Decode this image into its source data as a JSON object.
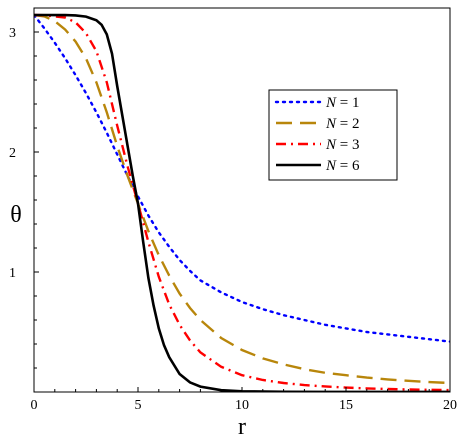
{
  "chart_data": {
    "type": "line",
    "xlabel": "r",
    "ylabel": "θ",
    "xlim": [
      0,
      20
    ],
    "ylim": [
      0,
      3.2
    ],
    "xticks": [
      0,
      5,
      10,
      15,
      20
    ],
    "xtick_labels": [
      "0",
      "5",
      "10",
      "15",
      "20"
    ],
    "yticks": [
      1,
      2,
      3
    ],
    "ytick_labels": [
      "1",
      "2",
      "3"
    ],
    "grid": false,
    "legend_position": "top-right",
    "series": [
      {
        "name": "N = 1",
        "legend_var": "N",
        "legend_rest": " = 1",
        "color": "#0000ff",
        "dash": "dotted",
        "x": [
          0,
          0.5,
          1,
          1.5,
          2,
          2.5,
          3,
          3.5,
          4,
          4.5,
          5,
          5.5,
          6,
          6.5,
          7,
          7.5,
          8,
          9,
          10,
          11,
          12,
          13,
          14,
          15,
          16,
          17,
          18,
          19,
          20
        ],
        "y": [
          3.1416,
          3.03,
          2.91,
          2.78,
          2.64,
          2.49,
          2.33,
          2.16,
          1.98,
          1.8,
          1.63,
          1.47,
          1.33,
          1.21,
          1.1,
          1.01,
          0.93,
          0.83,
          0.75,
          0.69,
          0.64,
          0.6,
          0.56,
          0.53,
          0.5,
          0.48,
          0.46,
          0.44,
          0.42
        ]
      },
      {
        "name": "N = 2",
        "legend_var": "N",
        "legend_rest": " = 2",
        "color": "#b8860b",
        "dash": "dashed",
        "x": [
          0,
          0.5,
          1,
          1.5,
          2,
          2.5,
          3,
          3.5,
          4,
          4.5,
          5,
          5.5,
          6,
          6.5,
          7,
          7.5,
          8,
          9,
          10,
          11,
          12,
          13,
          14,
          15,
          16,
          17,
          18,
          19,
          20
        ],
        "y": [
          3.1416,
          3.13,
          3.09,
          3.02,
          2.92,
          2.78,
          2.58,
          2.33,
          2.05,
          1.8,
          1.57,
          1.34,
          1.14,
          0.97,
          0.82,
          0.7,
          0.6,
          0.45,
          0.35,
          0.28,
          0.23,
          0.19,
          0.16,
          0.14,
          0.12,
          0.105,
          0.093,
          0.083,
          0.075
        ]
      },
      {
        "name": "N = 3",
        "legend_var": "N",
        "legend_rest": " = 3",
        "color": "#ff0000",
        "dash": "dashdot",
        "x": [
          0,
          0.5,
          1,
          1.5,
          2,
          2.5,
          3,
          3.5,
          4,
          4.5,
          5,
          5.5,
          6,
          6.5,
          7,
          7.5,
          8,
          9,
          10,
          11,
          12,
          13,
          14,
          15,
          16,
          17,
          18,
          19,
          20
        ],
        "y": [
          3.1416,
          3.14,
          3.13,
          3.12,
          3.08,
          2.99,
          2.84,
          2.58,
          2.22,
          1.88,
          1.57,
          1.25,
          0.96,
          0.73,
          0.56,
          0.43,
          0.33,
          0.21,
          0.14,
          0.1,
          0.075,
          0.058,
          0.046,
          0.037,
          0.03,
          0.025,
          0.021,
          0.018,
          0.016
        ]
      },
      {
        "name": "N = 6",
        "legend_var": "N",
        "legend_rest": " = 6",
        "color": "#000000",
        "dash": "solid",
        "x": [
          0,
          0.5,
          1,
          1.5,
          2,
          2.5,
          3,
          3.25,
          3.5,
          3.75,
          4,
          4.25,
          4.5,
          4.75,
          5,
          5.25,
          5.5,
          5.75,
          6,
          6.25,
          6.5,
          7,
          7.5,
          8,
          9,
          10,
          12,
          14,
          16,
          18,
          20
        ],
        "y": [
          3.1416,
          3.1416,
          3.1415,
          3.141,
          3.138,
          3.128,
          3.098,
          3.06,
          2.98,
          2.82,
          2.55,
          2.3,
          2.05,
          1.8,
          1.57,
          1.25,
          0.95,
          0.72,
          0.53,
          0.39,
          0.29,
          0.15,
          0.08,
          0.045,
          0.015,
          0.006,
          0.002,
          0.001,
          0.0005,
          0.0003,
          0.0002
        ]
      }
    ]
  }
}
